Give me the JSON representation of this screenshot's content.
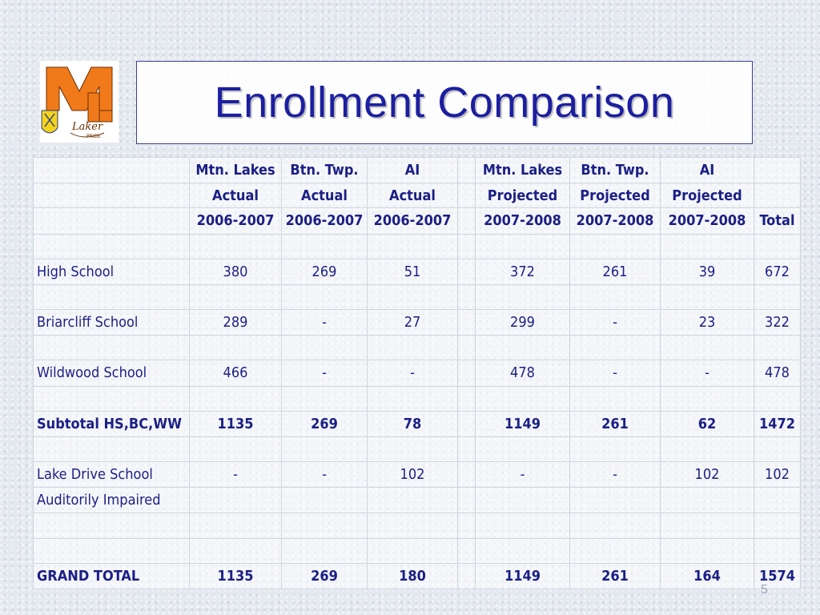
{
  "title": "Enrollment Comparison",
  "logo": {
    "letter": "M",
    "script": "Laker",
    "tagline": "PRIDE"
  },
  "table": {
    "header_rows": [
      [
        "",
        "Mtn. Lakes",
        "Btn. Twp.",
        "AI",
        "",
        "Mtn. Lakes",
        "Btn. Twp.",
        "AI",
        ""
      ],
      [
        "",
        "Actual",
        "Actual",
        "Actual",
        "",
        "Projected",
        "Projected",
        "Projected",
        ""
      ],
      [
        "",
        "2006-2007",
        "2006-2007",
        "2006-2007",
        "",
        "2007-2008",
        "2007-2008",
        "2007-2008",
        "Total"
      ]
    ],
    "rows": [
      {
        "label": "High School",
        "values": [
          "380",
          "269",
          "51",
          "",
          "372",
          "261",
          "39",
          "672"
        ]
      },
      {
        "label": "Briarcliff School",
        "values": [
          "289",
          "-",
          "27",
          "",
          "299",
          "-",
          "23",
          "322"
        ]
      },
      {
        "label": "Wildwood School",
        "values": [
          "466",
          "-",
          "-",
          "",
          "478",
          "-",
          "-",
          "478"
        ]
      },
      {
        "label": "Subtotal HS,BC,WW",
        "values": [
          "1135",
          "269",
          "78",
          "",
          "1149",
          "261",
          "62",
          "1472"
        ]
      },
      {
        "label": "Lake Drive School",
        "values": [
          "-",
          "-",
          "102",
          "",
          "-",
          "-",
          "102",
          "102"
        ]
      },
      {
        "label": "Auditorily Impaired",
        "values": [
          "",
          "",
          "",
          "",
          "",
          "",
          "",
          ""
        ]
      },
      {
        "label": "GRAND TOTAL",
        "values": [
          "1135",
          "269",
          "180",
          "",
          "1149",
          "261",
          "164",
          "1574"
        ]
      }
    ]
  },
  "page_number": "5"
}
